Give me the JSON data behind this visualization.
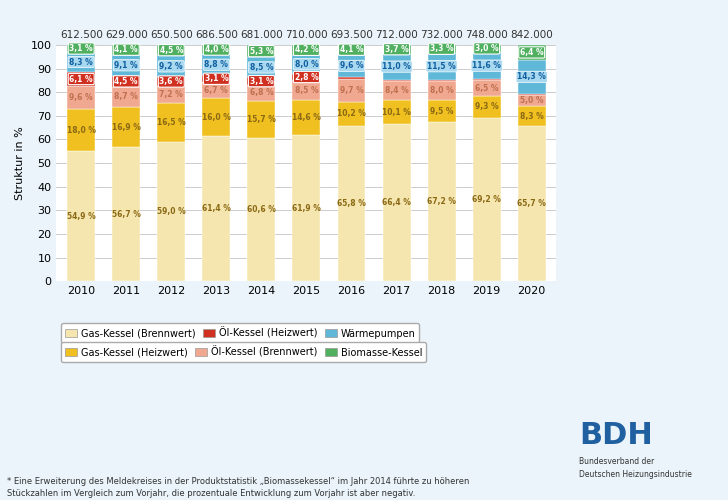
{
  "years": [
    2010,
    2011,
    2012,
    2013,
    2014,
    2015,
    2016,
    2017,
    2018,
    2019,
    2020
  ],
  "totals": [
    "612.500",
    "629.000",
    "650.500",
    "686.500",
    "681.000",
    "710.000",
    "693.500",
    "712.000",
    "732.000",
    "748.000",
    "842.000"
  ],
  "series": {
    "gas_brennwert": [
      54.9,
      56.7,
      59.0,
      61.4,
      60.6,
      61.9,
      65.8,
      66.4,
      67.2,
      69.2,
      65.7
    ],
    "gas_heizwert": [
      18.0,
      16.9,
      16.5,
      16.0,
      15.7,
      14.6,
      10.2,
      10.1,
      9.5,
      9.3,
      8.3
    ],
    "oel_brennwert": [
      9.6,
      8.7,
      7.2,
      6.7,
      6.8,
      8.5,
      9.7,
      8.4,
      8.0,
      6.5,
      5.0
    ],
    "oel_heizwert": [
      6.1,
      4.5,
      3.6,
      3.1,
      3.1,
      2.8,
      0.6,
      0.4,
      0.5,
      0.4,
      0.3
    ],
    "waermepumpen": [
      8.3,
      9.1,
      9.2,
      8.8,
      8.5,
      8.0,
      9.6,
      11.0,
      11.5,
      11.6,
      14.3
    ],
    "biomasse": [
      3.1,
      4.1,
      4.5,
      4.0,
      5.3,
      4.2,
      4.1,
      3.7,
      3.3,
      3.0,
      6.4
    ]
  },
  "colors": {
    "gas_brennwert": "#F5E6B0",
    "gas_heizwert": "#F0C020",
    "oel_brennwert": "#F0A890",
    "oel_heizwert": "#D03020",
    "waermepumpen": "#60B8D8",
    "biomasse": "#50B060"
  },
  "legend_labels": {
    "gas_brennwert": "Gas-Kessel (Brennwert)",
    "oel_heizwert": "Öl-Kessel (Heizwert)",
    "waermepumpen": "Wärmepumpen",
    "gas_heizwert": "Gas-Kessel (Heizwert)",
    "oel_brennwert": "Öl-Kessel (Brennwert)",
    "biomasse": "Biomasse-Kessel"
  },
  "ylabel": "Struktur in %",
  "ylim": [
    0,
    100
  ],
  "bg_color": "#EAF4FA",
  "plot_bg": "#FFFFFF",
  "footnote_line1": "* Eine Erweiterung des Meldekreises in der Produktstatistik „Biomassekessel“ im Jahr 2014 führte zu höheren",
  "footnote_line2": "Stückzahlen im Vergleich zum Vorjahr, die prozentuale Entwicklung zum Vorjahr ist aber negativ.",
  "label_colors": {
    "gas_brennwert": "#8B6914",
    "gas_heizwert": "#8B6914",
    "oel_brennwert": "#C07050",
    "oel_heizwert": "#FFFFFF",
    "waermepumpen": "#1060A0",
    "biomasse": "#FFFFFF"
  }
}
